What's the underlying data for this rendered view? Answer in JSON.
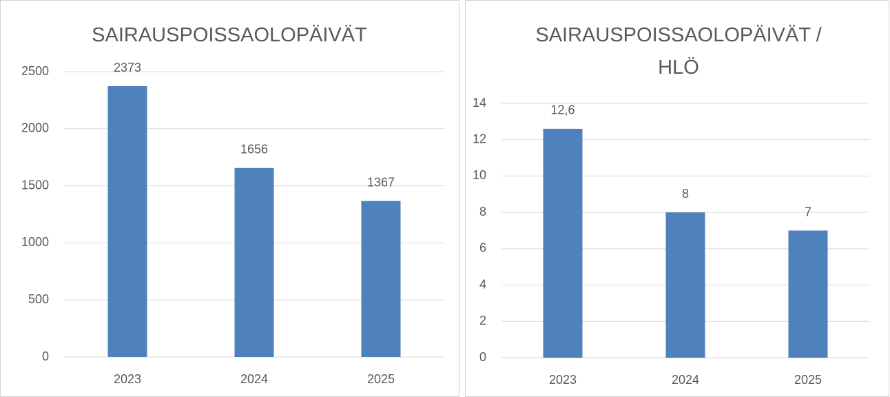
{
  "chart_data": [
    {
      "type": "bar",
      "title": "SAIRAUSPOISSAOLOPÄIVÄT",
      "categories": [
        "2023",
        "2024",
        "2025"
      ],
      "values": [
        2373,
        1656,
        1367
      ],
      "color": "#4f81bd",
      "ylim": [
        0,
        2500
      ],
      "yticks": [
        0,
        500,
        1000,
        1500,
        2000,
        2500
      ],
      "grid": true
    },
    {
      "type": "bar",
      "title": "SAIRAUSPOISSAOLOPÄIVÄT / HLÖ",
      "categories": [
        "2023",
        "2024",
        "2025"
      ],
      "values": [
        12.6,
        8,
        7
      ],
      "value_labels": [
        "12,6",
        "8",
        "7"
      ],
      "color": "#4f81bd",
      "ylim": [
        0,
        14
      ],
      "yticks": [
        0,
        2,
        4,
        6,
        8,
        10,
        12,
        14
      ],
      "grid": true
    }
  ]
}
